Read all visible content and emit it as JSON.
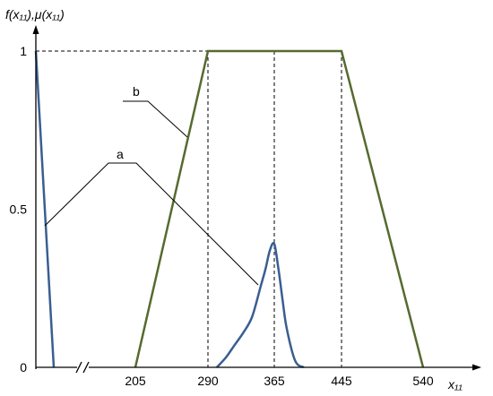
{
  "chart_data": {
    "type": "line",
    "ylabel": "f(x₁₁),μ(x₁₁)",
    "xlabel": "x₁₁",
    "x_ticks": [
      "205",
      "290",
      "365",
      "445",
      "540"
    ],
    "y_ticks": [
      "0",
      "0.5",
      "1"
    ],
    "x_axis_break": true,
    "xlim": [
      120,
      560
    ],
    "ylim": [
      0,
      1.15
    ],
    "grid": false,
    "series": [
      {
        "name": "a",
        "color": "#3A5E91",
        "segments": [
          {
            "x": [
              120,
              128
            ],
            "y": [
              1.0,
              0.0
            ]
          },
          {
            "x": [
              300,
              310,
              320,
              330,
              340,
              350,
              355,
              360,
              365,
              370,
              375,
              380,
              390,
              400
            ],
            "y": [
              0.0,
              0.03,
              0.07,
              0.11,
              0.16,
              0.26,
              0.31,
              0.37,
              0.39,
              0.31,
              0.21,
              0.12,
              0.02,
              0.0
            ]
          }
        ]
      },
      {
        "name": "b",
        "color": "#556B2F",
        "x": [
          205,
          290,
          445,
          540
        ],
        "y": [
          0,
          1,
          1,
          0
        ]
      }
    ],
    "reference_lines": {
      "vertical_x": [
        290,
        365,
        445
      ],
      "horizontal_y": 1
    }
  }
}
